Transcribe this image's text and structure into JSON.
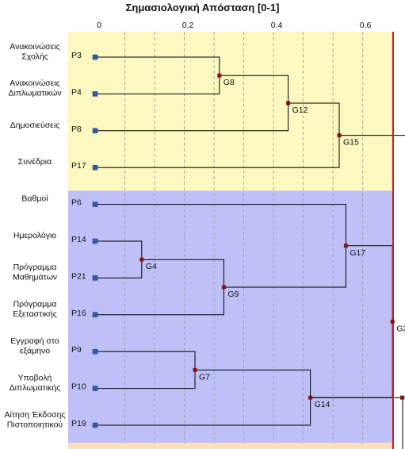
{
  "title": "Σημασιολογική Απόσταση [0-1]",
  "axis": {
    "min": 0,
    "max": 0.67,
    "ticks": [
      0,
      0.2,
      0.4,
      0.6
    ],
    "tick_labels": [
      "0",
      "0.2",
      "0.4",
      "0,6"
    ],
    "grid_step": 0.067
  },
  "threshold": 0.675,
  "colors": {
    "cluster_1": "#fbf8c0",
    "cluster_2": "#c0c0f8",
    "cluster_3": "#fbe0c0",
    "leaf": "#2f5da8",
    "node": "#8a1212",
    "line": "#000000",
    "grid": "#9a9a9a",
    "threshold": "#e0141c"
  },
  "clusters": [
    {
      "leaves": [
        "P3",
        "P4",
        "P8",
        "P17"
      ]
    },
    {
      "leaves": [
        "P6",
        "P14",
        "P21",
        "P16",
        "P9",
        "P10",
        "P19"
      ]
    }
  ],
  "leaves": [
    {
      "id": "P3",
      "label": [
        "Ανακοινώσεις",
        "Σχολής"
      ]
    },
    {
      "id": "P4",
      "label": [
        "Ανακοινώσεις",
        "Διπλωματικών"
      ]
    },
    {
      "id": "P8",
      "label": [
        "Δημοσιεύσεις"
      ]
    },
    {
      "id": "P17",
      "label": [
        "Συνέδρια"
      ]
    },
    {
      "id": "P6",
      "label": [
        "Βαθμοί"
      ]
    },
    {
      "id": "P14",
      "label": [
        "Ημερολόγιο"
      ]
    },
    {
      "id": "P21",
      "label": [
        "Πρόγραμμα",
        "Μαθημάτων"
      ]
    },
    {
      "id": "P16",
      "label": [
        "Πρόγραμμα",
        "Εξεταστικής"
      ]
    },
    {
      "id": "P9",
      "label": [
        "Εγγραφή στο",
        "εξάμηνο"
      ]
    },
    {
      "id": "P10",
      "label": [
        "Υποβολή",
        "Διπλωματικής"
      ]
    },
    {
      "id": "P19",
      "label": [
        "Αίτηση Έκδοσης",
        "Πιστοποιητικού"
      ]
    }
  ],
  "merges": [
    {
      "id": "G8",
      "children": [
        "P3",
        "P4"
      ],
      "distance": 0.28
    },
    {
      "id": "G12",
      "children": [
        "G8",
        "P8"
      ],
      "distance": 0.435
    },
    {
      "id": "G15",
      "children": [
        "G12",
        "P17"
      ],
      "distance": 0.55
    },
    {
      "id": "G4",
      "children": [
        "P14",
        "P21"
      ],
      "distance": 0.105
    },
    {
      "id": "G9",
      "children": [
        "G4",
        "P16"
      ],
      "distance": 0.29
    },
    {
      "id": "G17",
      "children": [
        "P6",
        "G9"
      ],
      "distance": 0.565
    },
    {
      "id": "G7",
      "children": [
        "P9",
        "P10"
      ],
      "distance": 0.225
    },
    {
      "id": "G14",
      "children": [
        "G7",
        "P19"
      ],
      "distance": 0.485
    },
    {
      "id": "G2",
      "children": [
        "G17",
        "G14"
      ],
      "distance": 0.67
    }
  ],
  "offscreen": [
    {
      "from": "G15",
      "to_distance": 0.72
    },
    {
      "from": "G14",
      "to_distance": 0.72
    }
  ]
}
